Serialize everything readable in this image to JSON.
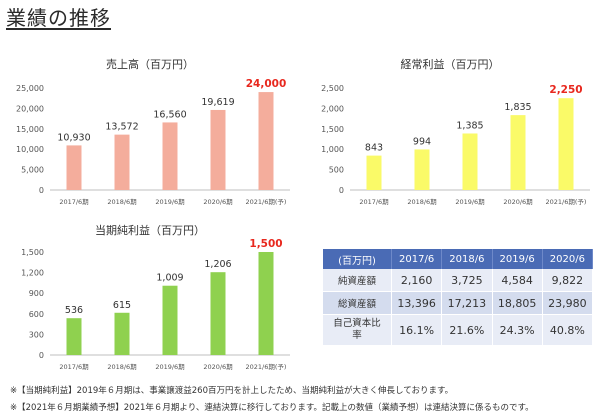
{
  "page_title": "業績の推移",
  "chart_data": [
    {
      "type": "bar",
      "title": "売上高（百万円）",
      "categories": [
        "2017/6期",
        "2018/6期",
        "2019/6期",
        "2020/6期",
        "2021/6期(予)"
      ],
      "values": [
        10930,
        13572,
        16560,
        19619,
        24000
      ],
      "value_labels": [
        "10,930",
        "13,572",
        "16,560",
        "19,619",
        "24,000"
      ],
      "ylim": [
        0,
        25000
      ],
      "yticks": [
        "0",
        "5,000",
        "10,000",
        "15,000",
        "20,000",
        "25,000"
      ],
      "color": "#f4ad9c",
      "highlight_color": "#e8281e",
      "highlight_index": 4,
      "grid": false
    },
    {
      "type": "bar",
      "title": "経常利益（百万円）",
      "categories": [
        "2017/6期",
        "2018/6期",
        "2019/6期",
        "2020/6期",
        "2021/6期(予)"
      ],
      "values": [
        843,
        994,
        1385,
        1835,
        2250
      ],
      "value_labels": [
        "843",
        "994",
        "1,385",
        "1,835",
        "2,250"
      ],
      "ylim": [
        0,
        2500
      ],
      "yticks": [
        "0",
        "500",
        "1,000",
        "1,500",
        "2,000",
        "2,500"
      ],
      "color": "#fafa68",
      "highlight_color": "#e8281e",
      "highlight_index": 4,
      "grid": false
    },
    {
      "type": "bar",
      "title": "当期純利益（百万円）",
      "categories": [
        "2017/6期",
        "2018/6期",
        "2019/6期",
        "2020/6期",
        "2021/6期(予)"
      ],
      "values": [
        536,
        615,
        1009,
        1206,
        1500
      ],
      "value_labels": [
        "536",
        "615",
        "1,009",
        "1,206",
        "1,500"
      ],
      "ylim": [
        0,
        1500
      ],
      "yticks": [
        "0",
        "300",
        "600",
        "900",
        "1,200",
        "1,500"
      ],
      "color": "#8fd14f",
      "highlight_color": "#e8281e",
      "highlight_index": 4,
      "grid": false
    },
    {
      "type": "table",
      "header": [
        "(百万円)",
        "2017/6",
        "2018/6",
        "2019/6",
        "2020/6"
      ],
      "rows": [
        {
          "label": "純資産額",
          "values": [
            "2,160",
            "3,725",
            "4,584",
            "9,822"
          ]
        },
        {
          "label": "総資産額",
          "values": [
            "13,396",
            "17,213",
            "18,805",
            "23,980"
          ]
        },
        {
          "label": "自己資本比率",
          "values": [
            "16.1%",
            "21.6%",
            "24.3%",
            "40.8%"
          ]
        }
      ]
    }
  ],
  "notes": [
    "※【当期純利益】2019年６月期は、事業譲渡益260百万円を計上したため、当期純利益が大きく伸長しております。",
    "※【2021年６月期業績予想】2021年６月期より、連結決算に移行しております。記載上の数値（業績予想）は連結決算に係るものです。"
  ],
  "colors": {
    "header_blue": "#4a6bb5",
    "highlight_red": "#e8281e"
  }
}
